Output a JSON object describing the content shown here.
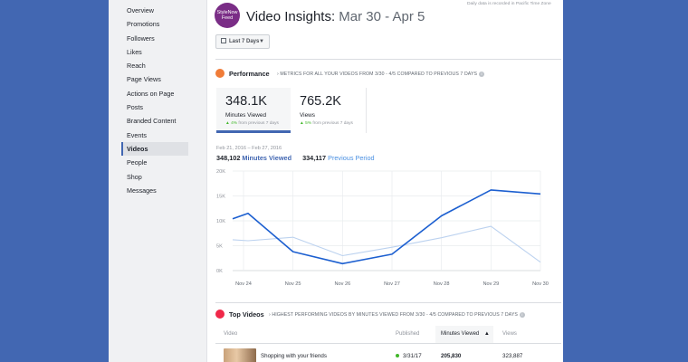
{
  "sidebar": {
    "items": [
      {
        "label": "Overview"
      },
      {
        "label": "Promotions"
      },
      {
        "label": "Followers"
      },
      {
        "label": "Likes"
      },
      {
        "label": "Reach"
      },
      {
        "label": "Page Views"
      },
      {
        "label": "Actions on Page"
      },
      {
        "label": "Posts"
      },
      {
        "label": "Branded Content"
      },
      {
        "label": "Events"
      },
      {
        "label": "Videos",
        "active": true
      },
      {
        "label": "People"
      },
      {
        "label": "Shop"
      },
      {
        "label": "Messages"
      }
    ]
  },
  "header": {
    "avatar_text_1": "StyleNow",
    "avatar_text_2": "Feed",
    "title": "Video Insights:",
    "title_range": "Mar 30 - Apr 5",
    "timezone_note": "Daily data is recorded in Pacific Time Zone"
  },
  "range_button": {
    "label": "Last 7 Days"
  },
  "performance": {
    "title": "Performance",
    "description": "METRICS FOR ALL YOUR VIDEOS FROM 3/30 - 4/5 COMPARED TO PREVIOUS 7 DAYS",
    "metrics": [
      {
        "value": "348.1K",
        "label": "Minutes Viewed",
        "change_pct": "4%",
        "change_text": "from previous 7 days"
      },
      {
        "value": "765.2K",
        "label": "Views",
        "change_pct": "5%",
        "change_text": "from previous 7 days"
      }
    ],
    "date_range": "Feb 21, 2016 – Feb 27, 2016",
    "current_value": "348,102",
    "current_label": "Minutes Viewed",
    "previous_value": "334,117",
    "previous_label": "Previous Period"
  },
  "chart_data": {
    "type": "line",
    "categories": [
      "Nov 24",
      "Nov 25",
      "Nov 26",
      "Nov 27",
      "Nov 28",
      "Nov 29",
      "Nov 30"
    ],
    "y_ticks": [
      "0K",
      "5K",
      "10K",
      "15K",
      "20K"
    ],
    "ylim": [
      0,
      20000
    ],
    "series": [
      {
        "name": "Minutes Viewed",
        "color": "#1c5fd0",
        "x": [
          0,
          0.3,
          1,
          2,
          3,
          4,
          5,
          6
        ],
        "values": [
          10400,
          11500,
          3800,
          1400,
          3300,
          11000,
          16200,
          15400
        ]
      },
      {
        "name": "Previous Period",
        "color": "#bcd2ef",
        "x": [
          0,
          0.3,
          1,
          2,
          3,
          4,
          5,
          6
        ],
        "values": [
          6200,
          6000,
          6700,
          3000,
          4700,
          6600,
          8900,
          1700
        ]
      }
    ],
    "grid": true
  },
  "top_videos": {
    "title": "Top Videos",
    "description": "HIGHEST PERFORMING VIDEOS BY MINUTES VIEWED FROM 3/30 - 4/5 COMPARED TO PREVIOUS 7 DAYS",
    "columns": {
      "video": "Video",
      "published": "Published",
      "minutes": "Minutes Viewed",
      "views": "Views"
    },
    "rows": [
      {
        "title": "Shopping with your friends",
        "published": "3/31/17",
        "minutes": "205,830",
        "views": "323,887"
      }
    ]
  }
}
